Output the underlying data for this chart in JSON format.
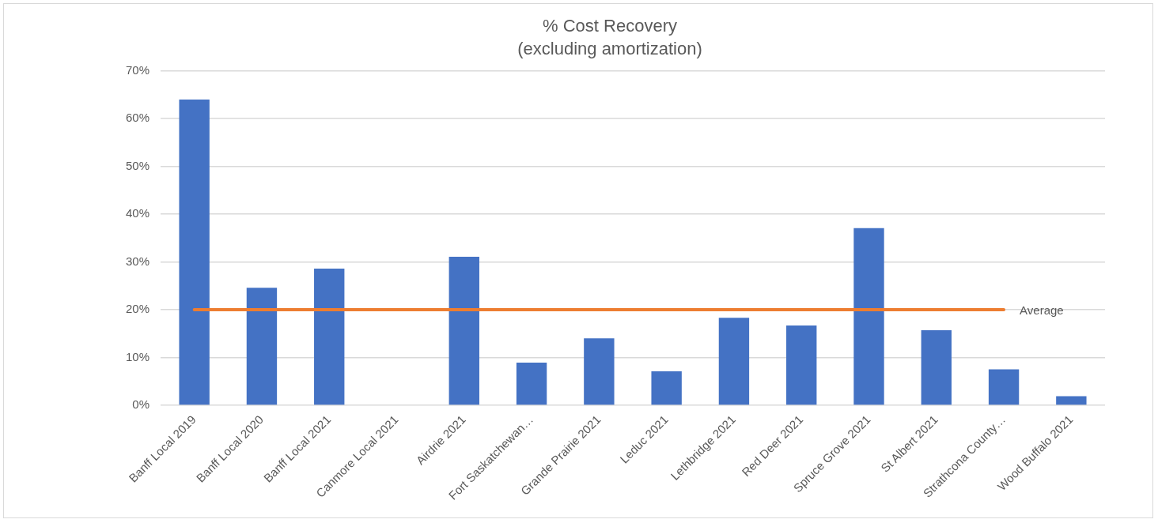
{
  "chart_data": {
    "type": "bar",
    "title": "% Cost Recovery",
    "subtitle": "(excluding amortization)",
    "categories": [
      "Banff Local 2019",
      "Banff Local 2020",
      "Banff Local 2021",
      "Canmore Local 2021",
      "Airdrie 2021",
      "Fort Saskatchewan…",
      "Grande Prairie 2021",
      "Leduc 2021",
      "Lethbridge 2021",
      "Red Deer 2021",
      "Spruce Grove 2021",
      "St Albert 2021",
      "Strathcona County…",
      "Wood Buffalo 2021"
    ],
    "series": [
      {
        "color": "#4472c4",
        "values": [
          64,
          24.6,
          28.6,
          0,
          31.1,
          8.9,
          14,
          7.1,
          18.3,
          16.7,
          37.1,
          15.7,
          7.5,
          1.9
        ]
      },
      {
        "type": "line",
        "name": "Average",
        "color": "#ed7d31",
        "values": [
          20,
          20,
          20,
          20,
          20,
          20,
          20,
          20,
          20,
          20,
          20,
          20,
          20,
          null
        ]
      }
    ],
    "ylim": [
      0,
      70
    ],
    "yticks": [
      {
        "value": 0,
        "label": "0%"
      },
      {
        "value": 10,
        "label": "10%"
      },
      {
        "value": 20,
        "label": "20%"
      },
      {
        "value": 30,
        "label": "30%"
      },
      {
        "value": 40,
        "label": "40%"
      },
      {
        "value": 50,
        "label": "50%"
      },
      {
        "value": 60,
        "label": "60%"
      },
      {
        "value": 70,
        "label": "70%"
      }
    ],
    "grid": "y",
    "legend": false,
    "marker": "none"
  }
}
